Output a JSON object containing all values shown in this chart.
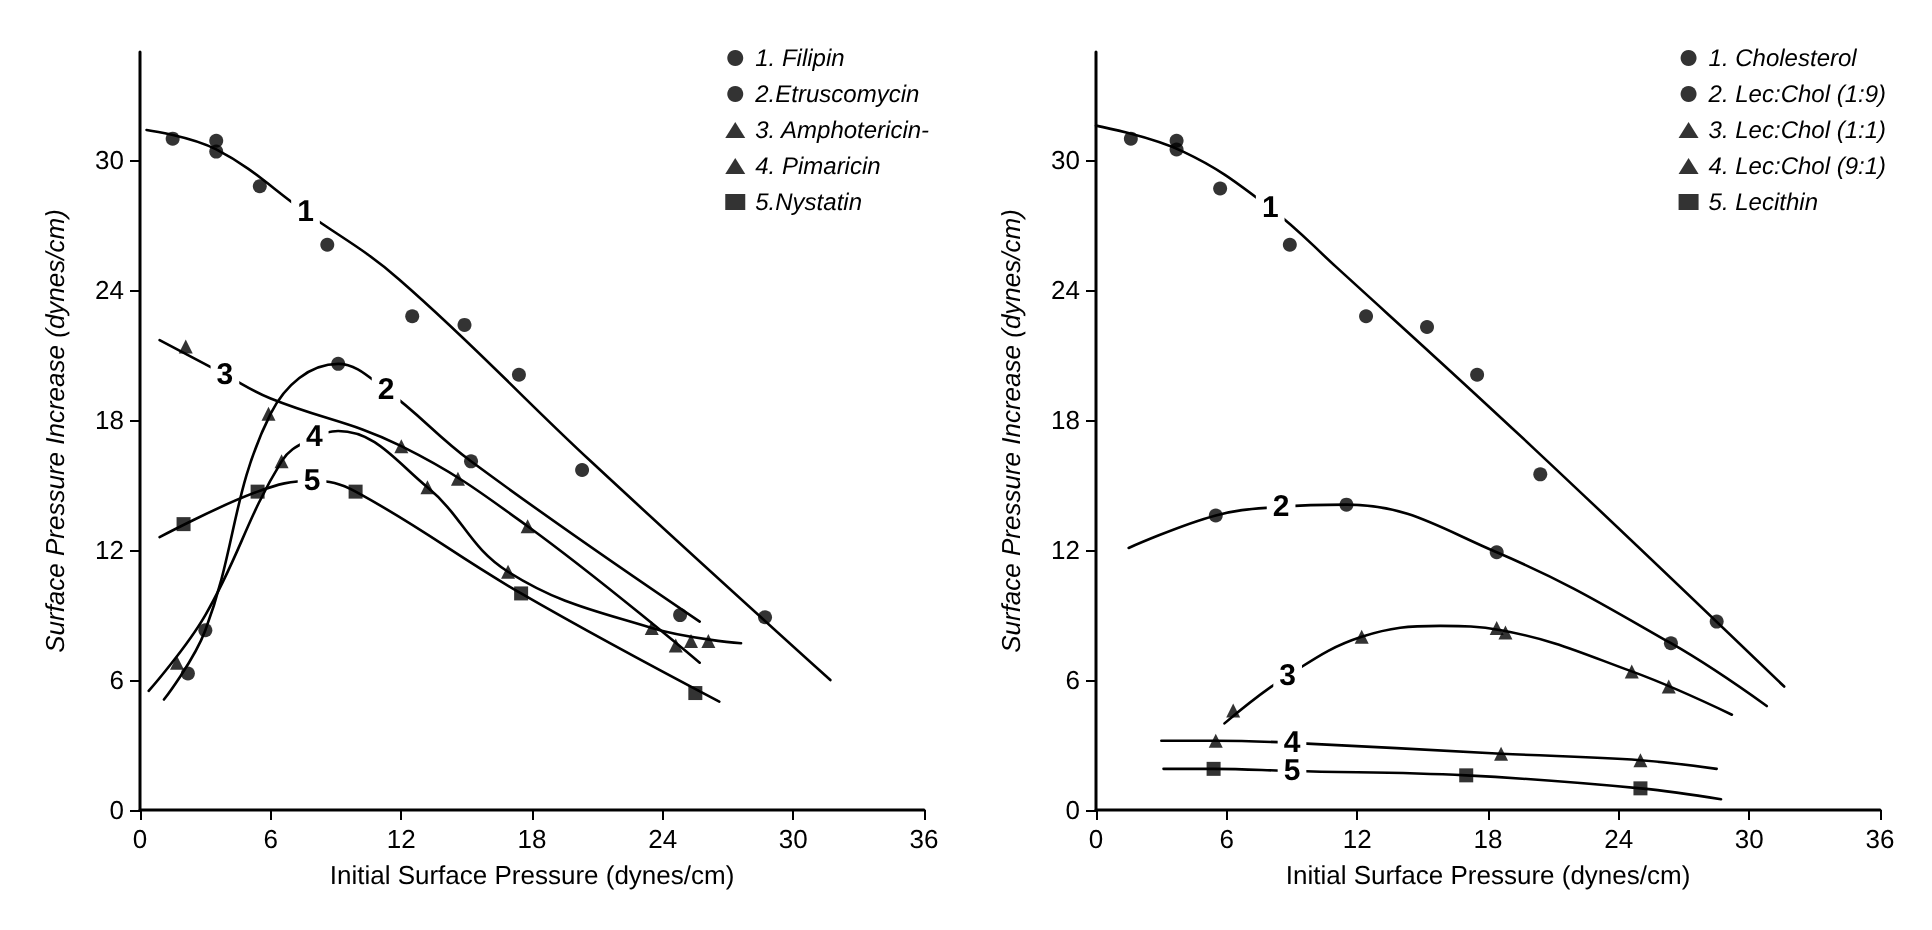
{
  "chart_data": [
    {
      "type": "scatter",
      "xlabel": "Initial Surface Pressure (dynes/cm)",
      "ylabel": "Surface Pressure Increase (dynes/cm)",
      "xlim": [
        0,
        36
      ],
      "xticks": [
        0,
        6,
        12,
        18,
        24,
        30,
        36
      ],
      "ylim": [
        0,
        35
      ],
      "yticks": [
        0,
        6,
        12,
        18,
        24,
        30
      ],
      "grid": false,
      "legend": "top right",
      "series": [
        {
          "name": "1. Filipin",
          "type": "scatter",
          "marker": "circle",
          "color": "#000000",
          "x": [
            1.5,
            3.5,
            3.5,
            5.5,
            8.6,
            12.5,
            14.9,
            17.4,
            20.3,
            28.7
          ],
          "values": [
            31.0,
            30.9,
            30.4,
            28.8,
            26.1,
            22.8,
            22.4,
            20.1,
            15.7,
            8.9
          ]
        },
        {
          "name": "2.Etruscomycin",
          "type": "scatter",
          "marker": "circle",
          "color": "#000000",
          "x": [
            2.2,
            3.0,
            9.1,
            15.2,
            24.8
          ],
          "values": [
            6.3,
            8.3,
            20.6,
            16.1,
            9.0
          ]
        },
        {
          "name": "3. Amphotericin-",
          "type": "scatter",
          "marker": "triangle",
          "color": "#000000",
          "x": [
            2.1,
            5.9,
            12.0,
            14.6,
            17.8,
            24.6,
            25.3
          ],
          "values": [
            21.4,
            18.3,
            16.8,
            15.3,
            13.1,
            7.6,
            7.8
          ]
        },
        {
          "name": "4. Pimaricin",
          "type": "scatter",
          "marker": "triangle",
          "color": "#000000",
          "x": [
            1.7,
            6.5,
            13.2,
            16.9,
            23.5,
            26.1
          ],
          "values": [
            6.8,
            16.1,
            14.9,
            11.0,
            8.4,
            7.8
          ]
        },
        {
          "name": "5.Nystatin",
          "type": "scatter",
          "marker": "square",
          "color": "#000000",
          "x": [
            2.0,
            5.4,
            9.9,
            17.5,
            25.5
          ],
          "values": [
            13.2,
            14.7,
            14.7,
            10.0,
            5.4
          ]
        },
        {
          "type": "line",
          "marker": "none",
          "color": "#000000",
          "x": [
            0.3,
            3.5,
            7.6,
            11.9,
            20.7,
            31.7
          ],
          "values": [
            31.4,
            30.5,
            27.6,
            24.5,
            16.1,
            6.0
          ]
        },
        {
          "type": "line",
          "marker": "none",
          "color": "#000000",
          "x": [
            1.1,
            3.0,
            6.0,
            9.1,
            11.3,
            15.2,
            25.7
          ],
          "values": [
            5.1,
            8.3,
            18.3,
            20.6,
            19.4,
            16.1,
            8.7
          ]
        },
        {
          "type": "line",
          "marker": "none",
          "color": "#000000",
          "x": [
            0.9,
            3.9,
            6.0,
            12.0,
            17.8,
            25.7
          ],
          "values": [
            21.7,
            20.1,
            19.0,
            16.8,
            13.1,
            6.8
          ]
        },
        {
          "type": "line",
          "marker": "none",
          "color": "#000000",
          "x": [
            0.4,
            3.0,
            6.5,
            8.0,
            9.1,
            13.2,
            16.9,
            23.5,
            27.6
          ],
          "values": [
            5.5,
            9.0,
            16.1,
            17.2,
            17.5,
            14.9,
            11.0,
            8.4,
            7.7
          ]
        },
        {
          "type": "line",
          "marker": "none",
          "color": "#000000",
          "x": [
            0.9,
            5.4,
            7.9,
            9.9,
            17.5,
            26.6
          ],
          "values": [
            12.6,
            14.7,
            15.2,
            14.7,
            10.0,
            5.0
          ]
        }
      ],
      "annotations": [
        {
          "text": "1",
          "x": 7.6,
          "y": 27.6
        },
        {
          "text": "2",
          "x": 11.3,
          "y": 19.4
        },
        {
          "text": "3",
          "x": 3.9,
          "y": 20.1
        },
        {
          "text": "4",
          "x": 8.0,
          "y": 17.2
        },
        {
          "text": "5",
          "x": 7.9,
          "y": 15.2
        }
      ]
    },
    {
      "type": "scatter",
      "xlabel": "Initial Surface Pressure (dynes/cm)",
      "ylabel": "Surface Pressure Increase (dynes/cm)",
      "xlim": [
        0,
        36
      ],
      "xticks": [
        0,
        6,
        12,
        18,
        24,
        30,
        36
      ],
      "ylim": [
        0,
        35
      ],
      "yticks": [
        0,
        6,
        12,
        18,
        24,
        30
      ],
      "grid": false,
      "legend": "top right",
      "series": [
        {
          "name": "1. Cholesterol",
          "type": "scatter",
          "marker": "circle",
          "color": "#000000",
          "x": [
            1.6,
            3.7,
            3.7,
            5.7,
            8.9,
            12.4,
            15.2,
            17.5,
            20.4,
            28.5
          ],
          "values": [
            31.0,
            30.5,
            30.9,
            28.7,
            26.1,
            22.8,
            22.3,
            20.1,
            15.5,
            8.7
          ]
        },
        {
          "name": "2. Lec:Chol (1:9)",
          "type": "scatter",
          "marker": "circle",
          "color": "#000000",
          "x": [
            5.5,
            11.5,
            18.4,
            26.4
          ],
          "values": [
            13.6,
            14.1,
            11.9,
            7.7
          ]
        },
        {
          "name": "3. Lec:Chol (1:1)",
          "type": "scatter",
          "marker": "triangle",
          "color": "#000000",
          "x": [
            6.3,
            12.2,
            18.4,
            18.8,
            24.6,
            26.3
          ],
          "values": [
            4.6,
            8.0,
            8.4,
            8.2,
            6.4,
            5.7
          ]
        },
        {
          "name": "4. Lec:Chol (9:1)",
          "type": "scatter",
          "marker": "triangle",
          "color": "#000000",
          "x": [
            5.5,
            18.6,
            25.0
          ],
          "values": [
            3.2,
            2.6,
            2.3
          ]
        },
        {
          "name": "5. Lecithin",
          "type": "scatter",
          "marker": "square",
          "color": "#000000",
          "x": [
            5.4,
            17.0,
            25.0
          ],
          "values": [
            1.9,
            1.6,
            1.0
          ]
        },
        {
          "type": "line",
          "marker": "none",
          "color": "#000000",
          "x": [
            0,
            4,
            8,
            11,
            20.1,
            31.6
          ],
          "values": [
            31.6,
            30.4,
            27.8,
            25.1,
            16.7,
            5.7
          ]
        },
        {
          "type": "line",
          "marker": "none",
          "color": "#000000",
          "x": [
            1.5,
            5.5,
            8.5,
            11.5,
            18.4,
            26.4,
            30.8
          ],
          "values": [
            12.1,
            13.6,
            14.0,
            14.1,
            11.9,
            7.7,
            4.8
          ]
        },
        {
          "type": "line",
          "marker": "none",
          "color": "#000000",
          "x": [
            5.9,
            8.8,
            12.2,
            15.8,
            18.6,
            24.6,
            29.2
          ],
          "values": [
            4.0,
            6.2,
            8.0,
            8.5,
            8.3,
            6.4,
            4.4
          ]
        },
        {
          "type": "line",
          "marker": "none",
          "color": "#000000",
          "x": [
            3.0,
            5.5,
            9.0,
            18.6,
            25.0,
            28.5
          ],
          "values": [
            3.2,
            3.2,
            3.1,
            2.6,
            2.3,
            1.9
          ]
        },
        {
          "type": "line",
          "marker": "none",
          "color": "#000000",
          "x": [
            3.1,
            5.4,
            9.0,
            17.0,
            25.0,
            28.7
          ],
          "values": [
            1.9,
            1.9,
            1.8,
            1.6,
            1.0,
            0.5
          ]
        }
      ],
      "annotations": [
        {
          "text": "1",
          "x": 8,
          "y": 27.8
        },
        {
          "text": "2",
          "x": 8.5,
          "y": 14.0
        },
        {
          "text": "3",
          "x": 8.8,
          "y": 6.2
        },
        {
          "text": "4",
          "x": 9.0,
          "y": 3.1
        },
        {
          "text": "5",
          "x": 9.0,
          "y": 1.8
        }
      ]
    }
  ]
}
